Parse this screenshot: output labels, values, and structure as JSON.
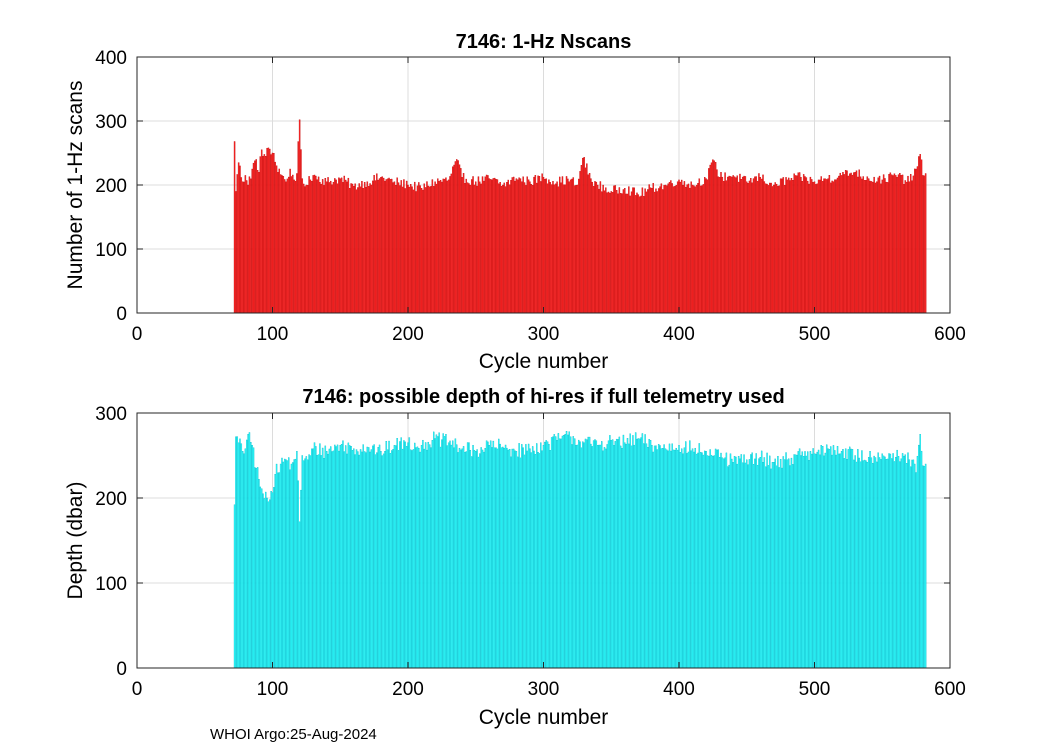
{
  "chart_data": [
    {
      "type": "bar",
      "title": "7146: 1-Hz Nscans",
      "xlabel": "Cycle number",
      "ylabel": "Number of 1-Hz scans",
      "xlim": [
        0,
        600
      ],
      "ylim": [
        0,
        400
      ],
      "xticks": [
        0,
        100,
        200,
        300,
        400,
        500,
        600
      ],
      "yticks": [
        0,
        100,
        200,
        300,
        400
      ],
      "grid": true,
      "bar_color": "#ff2a2a",
      "edge_color": "#c00000",
      "x_start": 72,
      "x_end": 582,
      "anchors": [
        [
          72,
          268
        ],
        [
          73,
          190
        ],
        [
          75,
          235
        ],
        [
          78,
          205
        ],
        [
          80,
          215
        ],
        [
          82,
          200
        ],
        [
          85,
          225
        ],
        [
          88,
          240
        ],
        [
          90,
          220
        ],
        [
          92,
          255
        ],
        [
          95,
          245
        ],
        [
          97,
          258
        ],
        [
          100,
          250
        ],
        [
          103,
          230
        ],
        [
          107,
          215
        ],
        [
          110,
          205
        ],
        [
          113,
          225
        ],
        [
          116,
          208
        ],
        [
          118,
          218
        ],
        [
          120,
          302
        ],
        [
          122,
          210
        ],
        [
          125,
          200
        ],
        [
          130,
          215
        ],
        [
          140,
          205
        ],
        [
          150,
          210
        ],
        [
          160,
          198
        ],
        [
          170,
          205
        ],
        [
          180,
          212
        ],
        [
          190,
          205
        ],
        [
          200,
          200
        ],
        [
          210,
          195
        ],
        [
          220,
          205
        ],
        [
          230,
          208
        ],
        [
          236,
          240
        ],
        [
          240,
          212
        ],
        [
          250,
          205
        ],
        [
          260,
          210
        ],
        [
          270,
          200
        ],
        [
          280,
          210
        ],
        [
          290,
          205
        ],
        [
          300,
          212
        ],
        [
          310,
          205
        ],
        [
          320,
          208
        ],
        [
          325,
          200
        ],
        [
          329,
          242
        ],
        [
          335,
          210
        ],
        [
          340,
          200
        ],
        [
          350,
          190
        ],
        [
          360,
          195
        ],
        [
          370,
          185
        ],
        [
          380,
          195
        ],
        [
          390,
          200
        ],
        [
          400,
          208
        ],
        [
          410,
          200
        ],
        [
          420,
          210
        ],
        [
          426,
          238
        ],
        [
          430,
          212
        ],
        [
          440,
          215
        ],
        [
          450,
          205
        ],
        [
          460,
          212
        ],
        [
          470,
          200
        ],
        [
          480,
          208
        ],
        [
          490,
          212
        ],
        [
          500,
          205
        ],
        [
          510,
          210
        ],
        [
          520,
          215
        ],
        [
          530,
          220
        ],
        [
          540,
          210
        ],
        [
          550,
          208
        ],
        [
          560,
          215
        ],
        [
          570,
          205
        ],
        [
          575,
          225
        ],
        [
          578,
          248
        ],
        [
          580,
          215
        ],
        [
          582,
          218
        ]
      ],
      "noise": 16
    },
    {
      "type": "bar",
      "title": "7146: possible depth of hi-res if full telemetry used",
      "xlabel": "Cycle number",
      "ylabel": "Depth (dbar)",
      "xlim": [
        0,
        600
      ],
      "ylim": [
        0,
        300
      ],
      "xticks": [
        0,
        100,
        200,
        300,
        400,
        500,
        600
      ],
      "yticks": [
        0,
        100,
        200,
        300
      ],
      "grid": true,
      "bar_color": "#33ffff",
      "edge_color": "#00b8c8",
      "x_start": 72,
      "x_end": 582,
      "anchors": [
        [
          72,
          192
        ],
        [
          73,
          272
        ],
        [
          75,
          265
        ],
        [
          78,
          255
        ],
        [
          80,
          258
        ],
        [
          82,
          275
        ],
        [
          85,
          262
        ],
        [
          88,
          235
        ],
        [
          90,
          222
        ],
        [
          93,
          205
        ],
        [
          96,
          200
        ],
        [
          99,
          208
        ],
        [
          102,
          228
        ],
        [
          106,
          240
        ],
        [
          110,
          245
        ],
        [
          114,
          240
        ],
        [
          118,
          255
        ],
        [
          120,
          172
        ],
        [
          122,
          250
        ],
        [
          126,
          245
        ],
        [
          130,
          258
        ],
        [
          140,
          255
        ],
        [
          150,
          262
        ],
        [
          160,
          258
        ],
        [
          170,
          260
        ],
        [
          180,
          255
        ],
        [
          190,
          262
        ],
        [
          200,
          265
        ],
        [
          210,
          262
        ],
        [
          220,
          270
        ],
        [
          230,
          265
        ],
        [
          240,
          258
        ],
        [
          250,
          255
        ],
        [
          260,
          262
        ],
        [
          270,
          260
        ],
        [
          280,
          255
        ],
        [
          290,
          258
        ],
        [
          300,
          262
        ],
        [
          310,
          268
        ],
        [
          320,
          272
        ],
        [
          330,
          265
        ],
        [
          340,
          262
        ],
        [
          350,
          268
        ],
        [
          360,
          265
        ],
        [
          370,
          270
        ],
        [
          380,
          262
        ],
        [
          390,
          258
        ],
        [
          400,
          262
        ],
        [
          410,
          258
        ],
        [
          420,
          255
        ],
        [
          426,
          250
        ],
        [
          430,
          248
        ],
        [
          440,
          242
        ],
        [
          450,
          245
        ],
        [
          460,
          248
        ],
        [
          470,
          242
        ],
        [
          480,
          245
        ],
        [
          490,
          250
        ],
        [
          500,
          252
        ],
        [
          510,
          258
        ],
        [
          520,
          255
        ],
        [
          530,
          250
        ],
        [
          540,
          248
        ],
        [
          550,
          252
        ],
        [
          560,
          248
        ],
        [
          570,
          245
        ],
        [
          575,
          230
        ],
        [
          578,
          275
        ],
        [
          580,
          238
        ],
        [
          582,
          240
        ]
      ],
      "noise": 18
    }
  ],
  "footer": "WHOI Argo:25-Aug-2024"
}
